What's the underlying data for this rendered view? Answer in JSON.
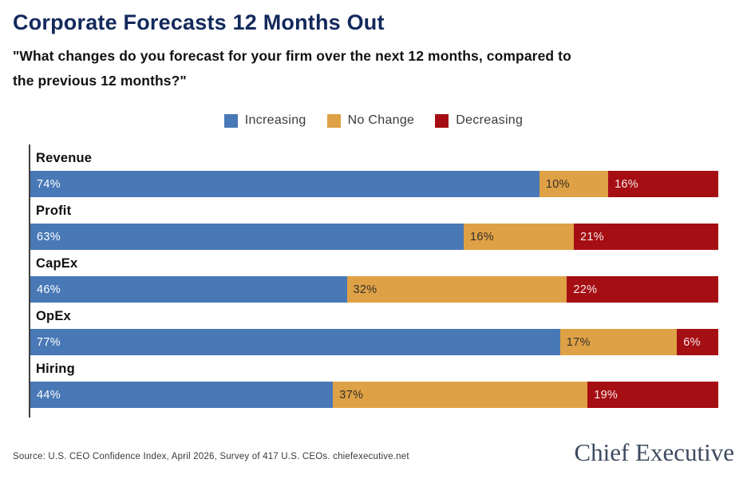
{
  "header": {
    "title": "Corporate Forecasts 12 Months Out",
    "subtitle_lines": [
      "\"What changes do you forecast for your firm over the next 12 months, compared to",
      "the previous 12 months?\""
    ]
  },
  "chart_data": {
    "type": "bar",
    "orientation": "horizontal-stacked",
    "categories": [
      "Revenue",
      "Profit",
      "CapEx",
      "OpEx",
      "Hiring"
    ],
    "series": [
      {
        "name": "Increasing",
        "color": "#4878b6",
        "label_color": "#ffffff",
        "values": [
          74,
          63,
          46,
          77,
          44
        ]
      },
      {
        "name": "No Change",
        "color": "#dfa145",
        "label_color": "#33302a",
        "values": [
          10,
          16,
          32,
          17,
          37
        ]
      },
      {
        "name": "Decreasing",
        "color": "#a50e13",
        "label_color": "#f7eaea",
        "values": [
          16,
          21,
          22,
          6,
          19
        ]
      }
    ],
    "value_suffix": "%",
    "xlim": [
      0,
      100
    ],
    "grid": false,
    "legend_position": "top-center",
    "axis_line_color": "#3f3f3f"
  },
  "footer": {
    "source": "Source: U.S. CEO Confidence Index, April 2026, Survey of 417 U.S. CEOs. chiefexecutive.net",
    "logo": "Chief Executive"
  },
  "colors": {
    "title": "#13295c",
    "background": "#ffffff"
  }
}
